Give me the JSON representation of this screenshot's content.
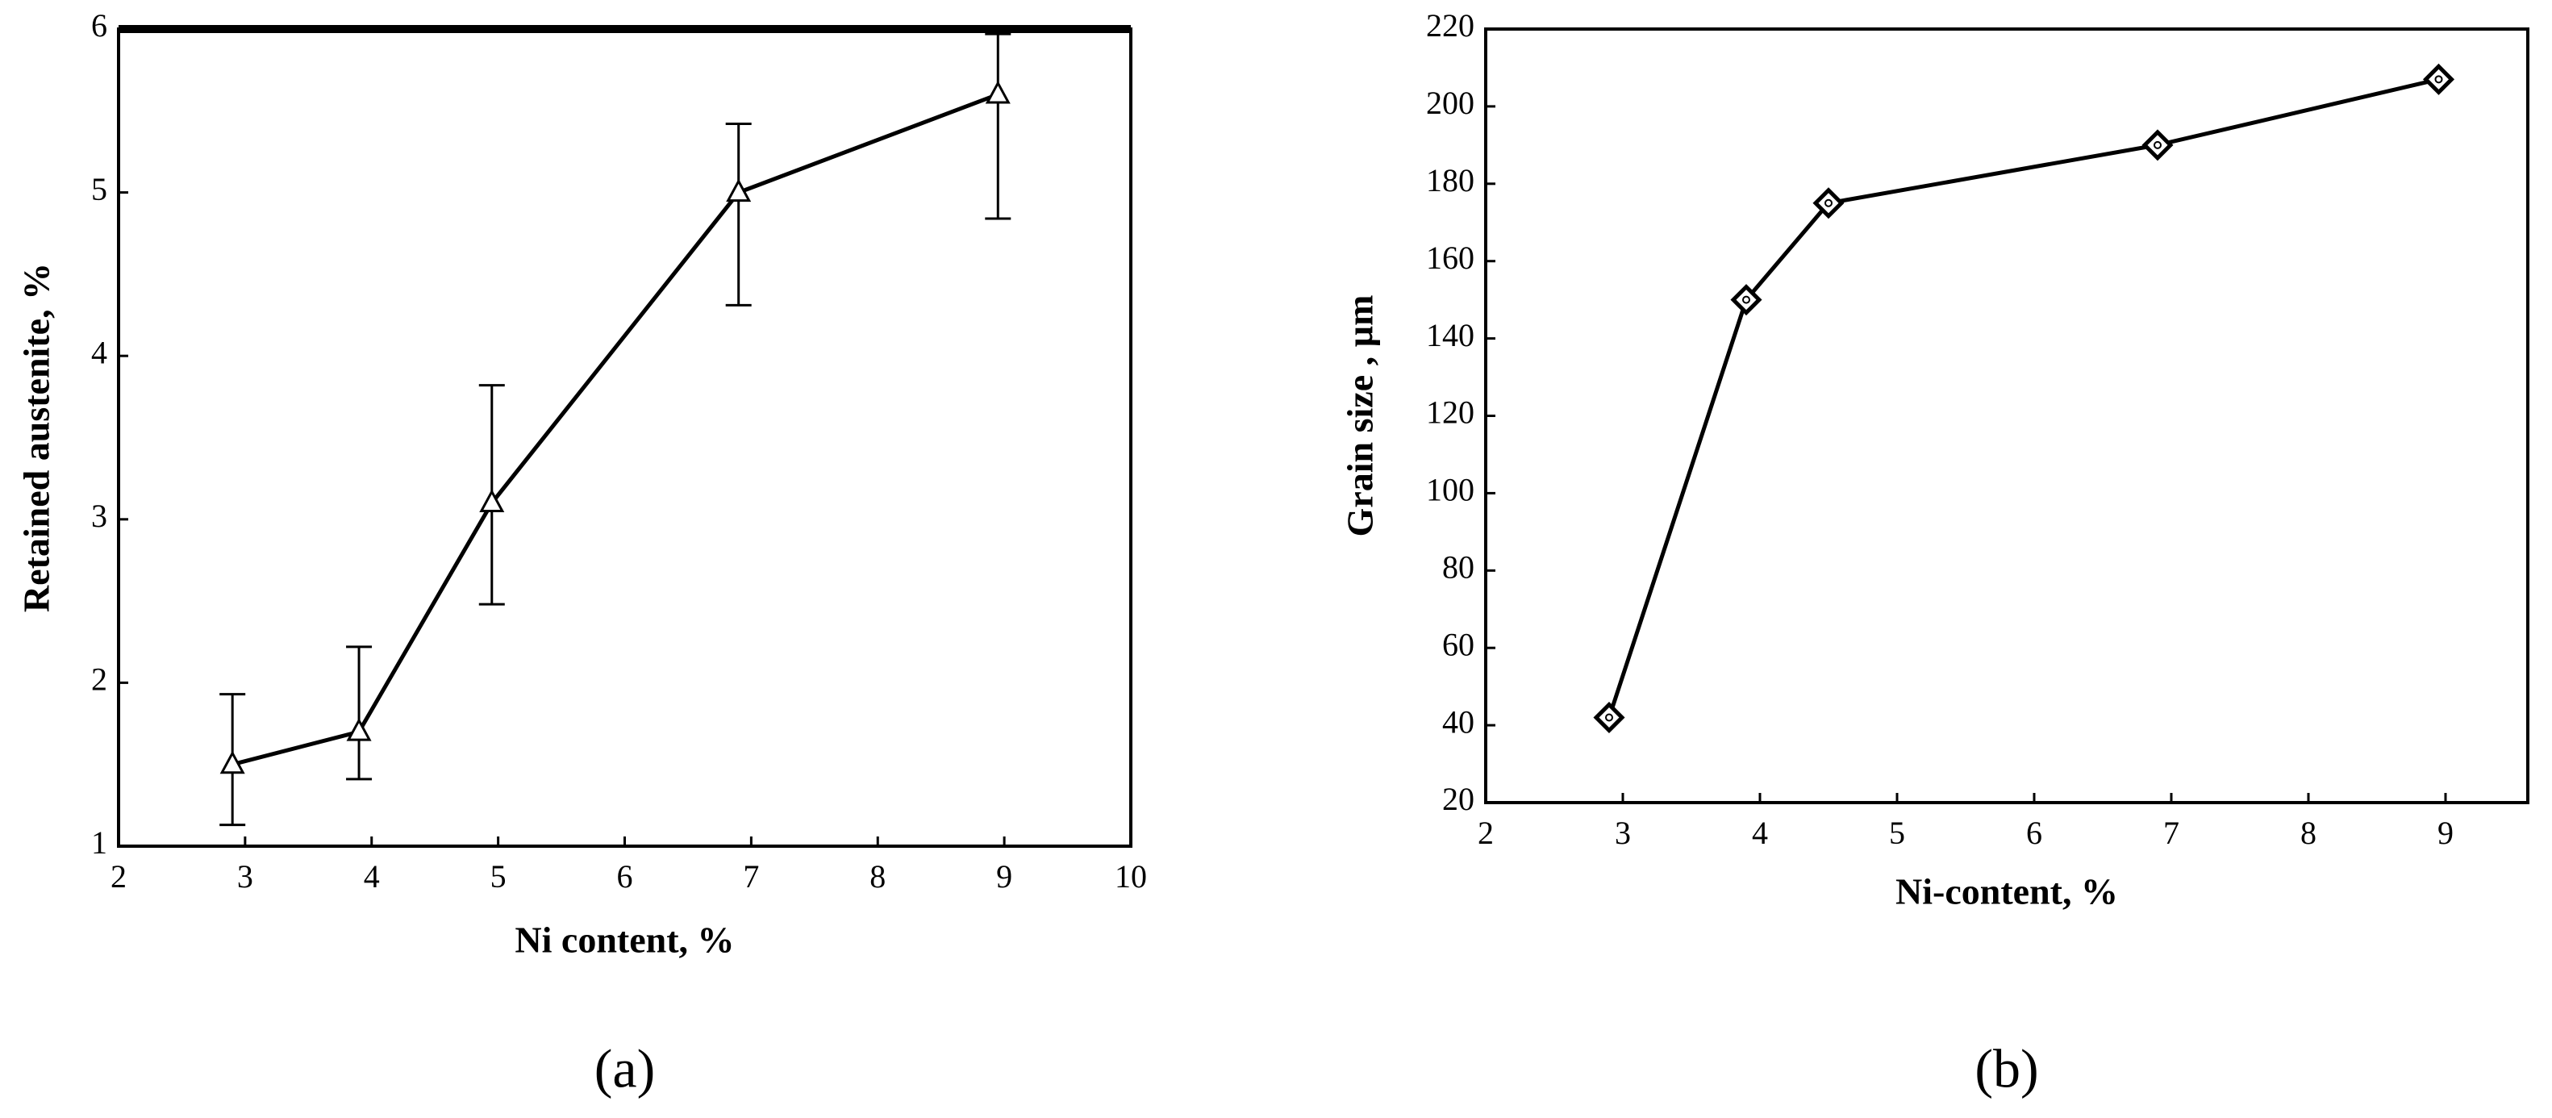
{
  "chart_data": [
    {
      "type": "line",
      "panel_label": "(a)",
      "x_label": "Ni content, %",
      "y_label": "Retained austenite, %",
      "x": [
        2.9,
        3.9,
        4.95,
        6.9,
        8.95
      ],
      "values": [
        1.5,
        1.7,
        3.1,
        5.0,
        5.6
      ],
      "error_minus": [
        0.37,
        0.29,
        0.62,
        0.69,
        0.76
      ],
      "error_plus": [
        0.43,
        0.52,
        0.72,
        0.42,
        0.37
      ],
      "color": "#000000",
      "marker": "triangle",
      "xlim": [
        2,
        10
      ],
      "xticks": [
        2,
        3,
        4,
        5,
        6,
        7,
        8,
        9,
        10
      ],
      "ylim": [
        1,
        6
      ],
      "yticks": [
        1,
        2,
        3,
        4,
        5,
        6
      ]
    },
    {
      "type": "line",
      "panel_label": "(b)",
      "x_label": "Ni-content, %",
      "y_label": "Grain size , µm",
      "x": [
        2.9,
        3.9,
        4.5,
        6.9,
        8.95
      ],
      "values": [
        42,
        150,
        175,
        190,
        207
      ],
      "color": "#000000",
      "marker": "diamond",
      "xlim": [
        2,
        9.6
      ],
      "xticks": [
        2,
        3,
        4,
        5,
        6,
        7,
        8,
        9
      ],
      "ylim": [
        20,
        220
      ],
      "yticks": [
        20,
        40,
        60,
        80,
        100,
        120,
        140,
        160,
        180,
        200,
        220
      ]
    }
  ]
}
